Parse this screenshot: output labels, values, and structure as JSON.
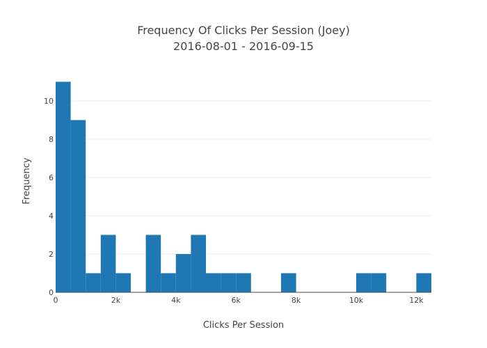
{
  "chart_data": {
    "type": "bar",
    "title": "Frequency Of Clicks Per Session (Joey)",
    "subtitle": "2016-08-01 - 2016-09-15",
    "xlabel": "Clicks Per Session",
    "ylabel": "Frequency",
    "bin_width": 500,
    "bins": [
      {
        "start": 0,
        "end": 500,
        "count": 11
      },
      {
        "start": 500,
        "end": 1000,
        "count": 9
      },
      {
        "start": 1000,
        "end": 1500,
        "count": 1
      },
      {
        "start": 1500,
        "end": 2000,
        "count": 3
      },
      {
        "start": 2000,
        "end": 2500,
        "count": 1
      },
      {
        "start": 2500,
        "end": 3000,
        "count": 0
      },
      {
        "start": 3000,
        "end": 3500,
        "count": 3
      },
      {
        "start": 3500,
        "end": 4000,
        "count": 1
      },
      {
        "start": 4000,
        "end": 4500,
        "count": 2
      },
      {
        "start": 4500,
        "end": 5000,
        "count": 3
      },
      {
        "start": 5000,
        "end": 5500,
        "count": 1
      },
      {
        "start": 5500,
        "end": 6000,
        "count": 1
      },
      {
        "start": 6000,
        "end": 6500,
        "count": 1
      },
      {
        "start": 6500,
        "end": 7000,
        "count": 0
      },
      {
        "start": 7000,
        "end": 7500,
        "count": 0
      },
      {
        "start": 7500,
        "end": 8000,
        "count": 1
      },
      {
        "start": 8000,
        "end": 8500,
        "count": 0
      },
      {
        "start": 8500,
        "end": 9000,
        "count": 0
      },
      {
        "start": 9000,
        "end": 9500,
        "count": 0
      },
      {
        "start": 9500,
        "end": 10000,
        "count": 0
      },
      {
        "start": 10000,
        "end": 10500,
        "count": 1
      },
      {
        "start": 10500,
        "end": 11000,
        "count": 1
      },
      {
        "start": 11000,
        "end": 11500,
        "count": 0
      },
      {
        "start": 11500,
        "end": 12000,
        "count": 0
      },
      {
        "start": 12000,
        "end": 12500,
        "count": 1
      }
    ],
    "xlim": [
      0,
      12500
    ],
    "ylim": [
      0,
      11
    ],
    "x_ticks": [
      0,
      2000,
      4000,
      6000,
      8000,
      10000,
      12000
    ],
    "x_tick_labels": [
      "0",
      "2k",
      "4k",
      "6k",
      "8k",
      "10k",
      "12k"
    ],
    "y_ticks": [
      0,
      2,
      4,
      6,
      8,
      10
    ],
    "y_tick_labels": [
      "0",
      "2",
      "4",
      "6",
      "8",
      "10"
    ],
    "grid": true,
    "bar_color": "#1f77b4"
  }
}
